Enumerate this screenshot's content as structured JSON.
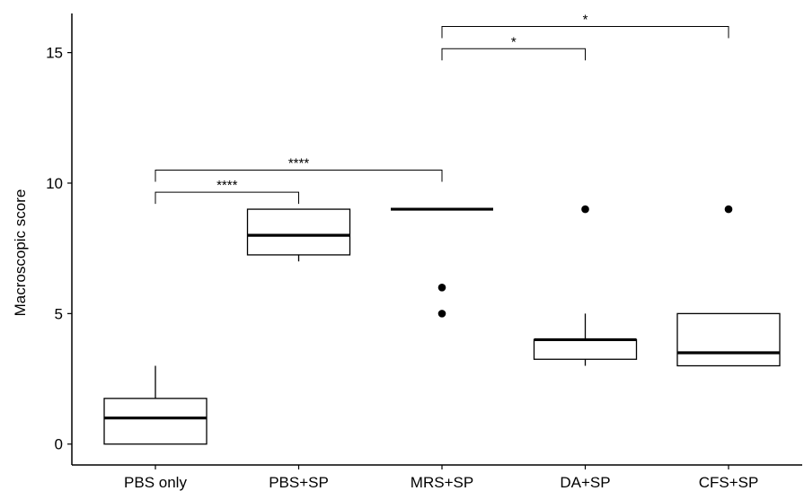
{
  "chart_data": {
    "type": "box",
    "ylabel": "Macroscopic score",
    "xlabel": "",
    "ylim": [
      -0.8,
      16.5
    ],
    "yticks": [
      0,
      5,
      10,
      15
    ],
    "grid": false,
    "categories": [
      "PBS only",
      "PBS+SP",
      "MRS+SP",
      "DA+SP",
      "CFS+SP"
    ],
    "boxes": [
      {
        "category": "PBS only",
        "whisker_low": 0,
        "q1": 0,
        "median": 1,
        "q3": 1.75,
        "whisker_high": 3,
        "outliers": []
      },
      {
        "category": "PBS+SP",
        "whisker_low": 7,
        "q1": 7.25,
        "median": 8,
        "q3": 9,
        "whisker_high": 9,
        "outliers": []
      },
      {
        "category": "MRS+SP",
        "whisker_low": 9,
        "q1": 9,
        "median": 9,
        "q3": 9,
        "whisker_high": 9,
        "outliers": [
          5,
          6
        ]
      },
      {
        "category": "DA+SP",
        "whisker_low": 3,
        "q1": 3.25,
        "median": 4,
        "q3": 4,
        "whisker_high": 5,
        "outliers": [
          9
        ]
      },
      {
        "category": "CFS+SP",
        "whisker_low": 3,
        "q1": 3,
        "median": 3.5,
        "q3": 5,
        "whisker_high": 5,
        "outliers": [
          9
        ]
      }
    ],
    "significance": [
      {
        "from": "PBS only",
        "to": "PBS+SP",
        "y": 9.65,
        "label": "****"
      },
      {
        "from": "PBS only",
        "to": "MRS+SP",
        "y": 10.5,
        "label": "****"
      },
      {
        "from": "MRS+SP",
        "to": "DA+SP",
        "y": 15.15,
        "label": "*"
      },
      {
        "from": "MRS+SP",
        "to": "CFS+SP",
        "y": 16.0,
        "label": "*"
      }
    ]
  }
}
